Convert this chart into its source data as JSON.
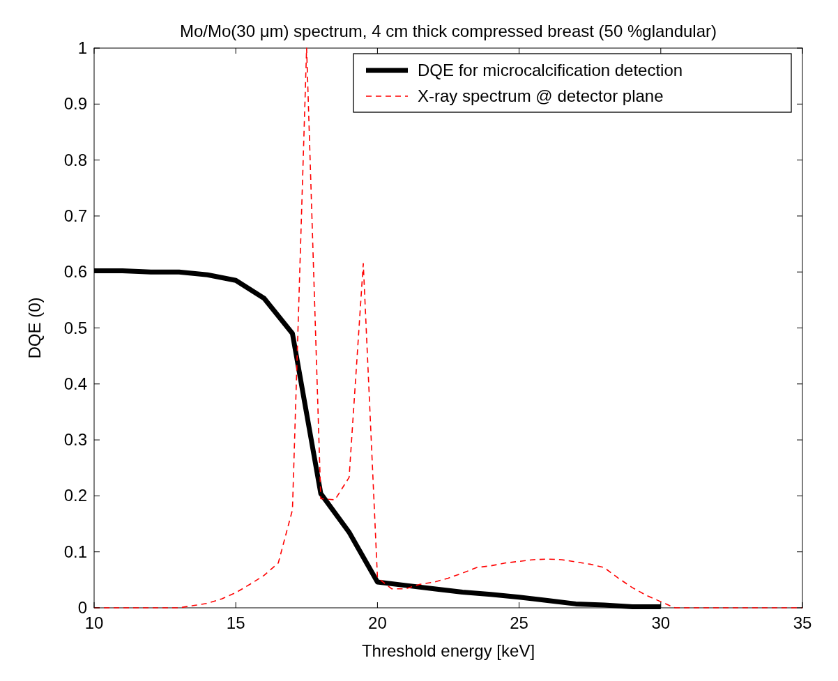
{
  "chart_data": {
    "type": "line",
    "title": "Mo/Mo(30 μm) spectrum, 4 cm thick compressed breast (50 %glandular)",
    "xlabel": "Threshold energy [keV]",
    "ylabel": "DQE (0)",
    "xlim": [
      10,
      35
    ],
    "xticks": [
      10,
      15,
      20,
      25,
      30,
      35
    ],
    "ylim": [
      0,
      1
    ],
    "yticks": [
      0,
      0.1,
      0.2,
      0.3,
      0.4,
      0.5,
      0.6,
      0.7,
      0.8,
      0.9,
      1
    ],
    "grid": false,
    "legend": "top right",
    "marker": "none",
    "series": [
      {
        "name": "DQE for microcalcification detection",
        "color": "#000000",
        "line_style": "solid",
        "x": [
          10,
          11,
          12,
          13,
          14,
          15,
          16,
          17,
          18,
          19,
          20,
          21,
          22,
          23,
          24,
          25,
          26,
          27,
          28,
          29,
          30
        ],
        "values": [
          0.602,
          0.602,
          0.6,
          0.6,
          0.595,
          0.585,
          0.553,
          0.49,
          0.204,
          0.135,
          0.046,
          0.04,
          0.034,
          0.028,
          0.024,
          0.019,
          0.013,
          0.007,
          0.005,
          0.002,
          0.002
        ]
      },
      {
        "name": "X-ray spectrum @ detector plane",
        "color": "#ff0000",
        "line_style": "dashed",
        "x": [
          10,
          10.5,
          11,
          11.5,
          12,
          12.5,
          13,
          13.5,
          14,
          14.5,
          15,
          15.5,
          16,
          16.5,
          17,
          17.5,
          18,
          18.5,
          19,
          19.5,
          20,
          20.5,
          21,
          21.5,
          22,
          22.5,
          23,
          23.5,
          24,
          24.5,
          25,
          25.5,
          26,
          26.5,
          27,
          27.5,
          28,
          28.5,
          29,
          29.5,
          30,
          30.5,
          31,
          32,
          33,
          34,
          35
        ],
        "values": [
          0,
          0,
          0,
          0,
          0,
          0,
          0,
          0.004,
          0.008,
          0.016,
          0.027,
          0.042,
          0.058,
          0.08,
          0.175,
          1,
          0.195,
          0.193,
          0.233,
          0.615,
          0.054,
          0.034,
          0.034,
          0.042,
          0.046,
          0.053,
          0.062,
          0.072,
          0.075,
          0.08,
          0.083,
          0.086,
          0.087,
          0.086,
          0.082,
          0.078,
          0.072,
          0.053,
          0.036,
          0.022,
          0.011,
          0,
          0,
          0,
          0,
          0,
          0
        ]
      }
    ]
  }
}
